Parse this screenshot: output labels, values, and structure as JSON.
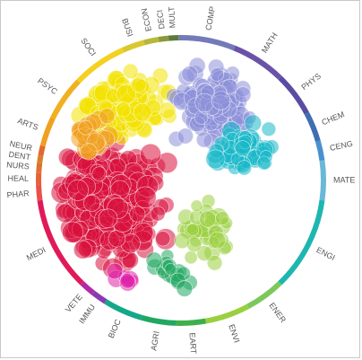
{
  "ring_labels": [
    {
      "key": "MULT",
      "text": "MULT",
      "color": "#5d7a3a",
      "arc": [
        -5.0,
        -1.0
      ]
    },
    {
      "key": "DECI",
      "text": "DECI",
      "color": "#8a9a3a",
      "arc": [
        -9.0,
        -5.0
      ]
    },
    {
      "key": "ECON",
      "text": "ECON",
      "color": "#b8b83a",
      "arc": [
        -15.0,
        -9.0
      ]
    },
    {
      "key": "COMP",
      "text": "COMP",
      "color": "#7479b8",
      "arc": [
        -1.0,
        22.0
      ]
    },
    {
      "key": "MATH",
      "text": "MATH",
      "color": "#6a52a8",
      "arc": [
        22.0,
        44.0
      ]
    },
    {
      "key": "PHYS",
      "text": "PHYS",
      "color": "#5a4ca2",
      "arc": [
        44.0,
        62.0
      ]
    },
    {
      "key": "CHEM",
      "text": "CHEM",
      "color": "#3f6fb2",
      "arc": [
        62.0,
        74.0
      ]
    },
    {
      "key": "CENG",
      "text": "CENG",
      "color": "#4a90d0",
      "arc": [
        74.0,
        82.0
      ]
    },
    {
      "key": "MATE",
      "text": "MATE",
      "color": "#6ab8d8",
      "arc": [
        82.0,
        98.0
      ]
    },
    {
      "key": "ENGI",
      "text": "ENGI",
      "color": "#1eb6b0",
      "arc": [
        98.0,
        136.0
      ]
    },
    {
      "key": "ENER",
      "text": "ENER",
      "color": "#7cc85a",
      "arc": [
        136.0,
        152.0
      ]
    },
    {
      "key": "ENVI",
      "text": "ENVI",
      "color": "#9ad040",
      "arc": [
        152.0,
        170.0
      ]
    },
    {
      "key": "EART",
      "text": "EART",
      "color": "#3cb04c",
      "arc": [
        170.0,
        182.0
      ]
    },
    {
      "key": "AGRI",
      "text": "AGRI",
      "color": "#20a860",
      "arc": [
        182.0,
        196.0
      ]
    },
    {
      "key": "BIOC",
      "text": "BIOC",
      "color": "#14a88a",
      "arc": [
        196.0,
        212.0
      ]
    },
    {
      "key": "IMMU",
      "text": "IMMU",
      "color": "#8a3ab0",
      "arc": [
        212.0,
        218.0
      ]
    },
    {
      "key": "VETE",
      "text": "VETE",
      "color": "#b02aa8",
      "arc": [
        218.0,
        224.0
      ]
    },
    {
      "key": "MEDI",
      "text": "MEDI",
      "color": "#e01a58",
      "arc": [
        224.0,
        262.0
      ]
    },
    {
      "key": "PHAR",
      "text": "PHAR",
      "color": "#e8504a",
      "arc": [
        262.0,
        268.0
      ]
    },
    {
      "key": "HEAL",
      "text": "HEAL",
      "color": "#e86038",
      "arc": [
        268.0,
        273.0
      ]
    },
    {
      "key": "NURS",
      "text": "NURS",
      "color": "#e07030",
      "arc": [
        273.0,
        277.0
      ]
    },
    {
      "key": "DENT",
      "text": "DENT",
      "color": "#d8802a",
      "arc": [
        277.0,
        280.0
      ]
    },
    {
      "key": "NEUR",
      "text": "NEUR",
      "color": "#e06a30",
      "arc": [
        280.0,
        284.0
      ]
    },
    {
      "key": "ARTS",
      "text": "ARTS",
      "color": "#f0a020",
      "arc": [
        284.0,
        296.0
      ]
    },
    {
      "key": "PSYC",
      "text": "PSYC",
      "color": "#f0b020",
      "arc": [
        296.0,
        314.0
      ]
    },
    {
      "key": "SOCI",
      "text": "SOCI",
      "color": "#f5d020",
      "arc": [
        314.0,
        336.0
      ]
    },
    {
      "key": "BUSI",
      "text": "BUSI",
      "color": "#d8c830",
      "arc": [
        336.0,
        345.0
      ]
    }
  ],
  "palette": {
    "background": "#ffffff",
    "frame": "#c8c8c8",
    "label_text": "#555555"
  }
}
